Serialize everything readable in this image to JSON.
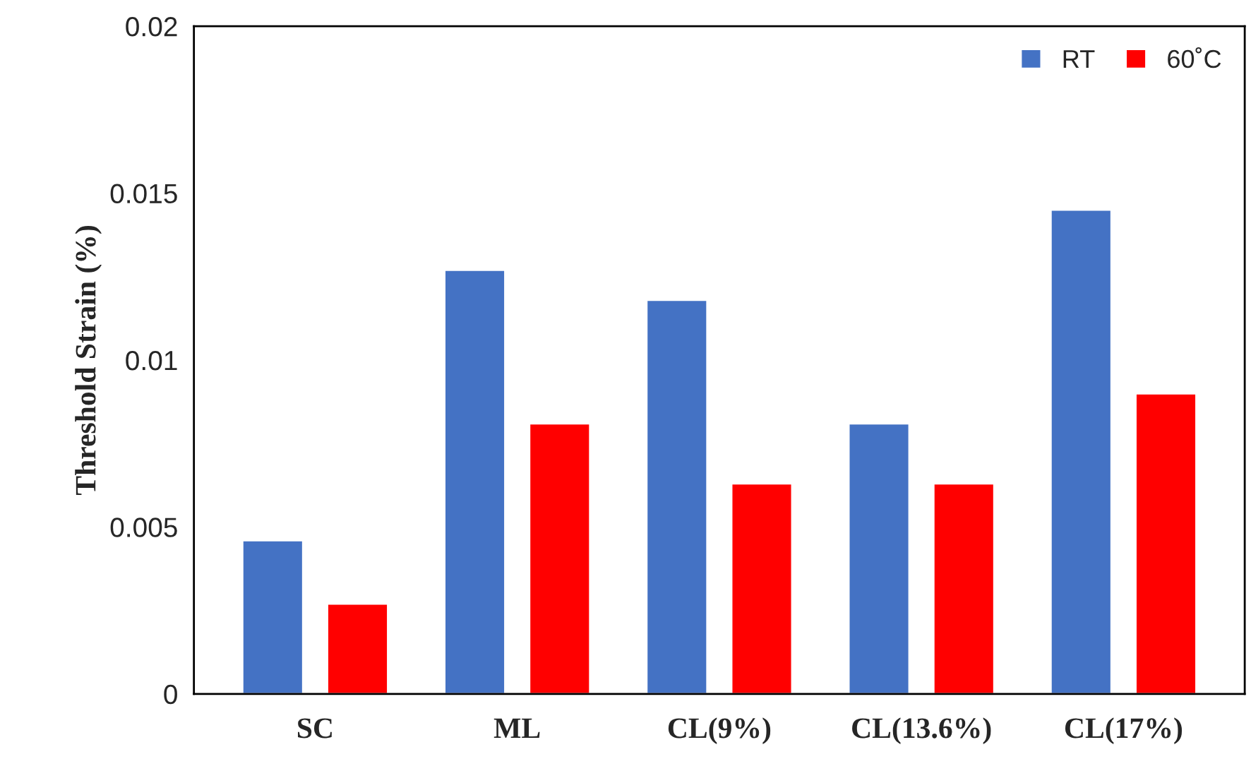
{
  "chart_data": {
    "type": "bar",
    "ylabel": "Threshold Strain (%)",
    "categories": [
      "SC",
      "ML",
      "CL(9%)",
      "CL(13.6%)",
      "CL(17%)"
    ],
    "series": [
      {
        "name": "RT",
        "color": "#4472c4",
        "values": [
          0.0046,
          0.0127,
          0.0118,
          0.0081,
          0.0145
        ]
      },
      {
        "name": "60˚C",
        "color": "#ff0000",
        "values": [
          0.0027,
          0.0081,
          0.0063,
          0.0063,
          0.009
        ]
      }
    ],
    "ylim": [
      0,
      0.02
    ],
    "yticks": [
      {
        "value": 0,
        "label": "0"
      },
      0.005,
      0.01,
      0.015,
      0.02
    ],
    "grid": false,
    "legend": "top right"
  }
}
